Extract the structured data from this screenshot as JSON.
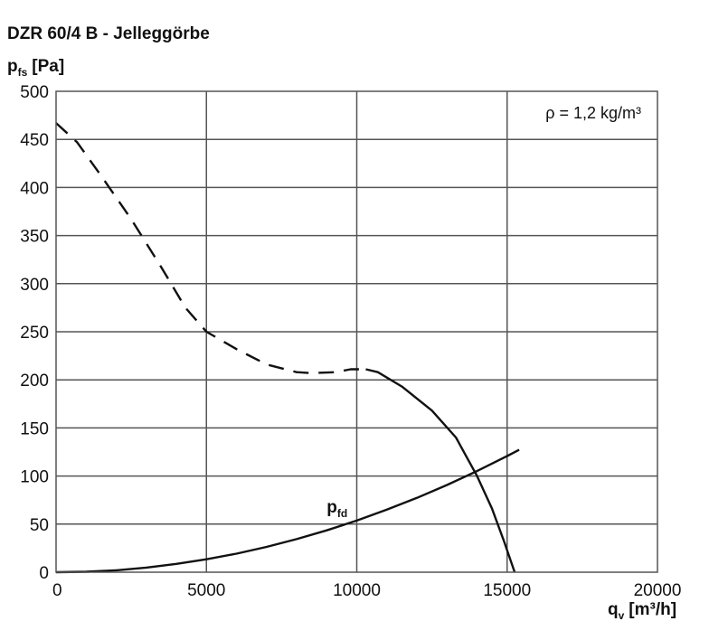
{
  "title": "DZR 60/4 B - Jelleggörbe",
  "chart_data": {
    "type": "line",
    "title": "DZR 60/4 B - Jelleggörbe",
    "xlabel": {
      "main": "q",
      "sub": "v",
      "unit": "[m³/h]"
    },
    "ylabel": {
      "main": "p",
      "sub": "fs",
      "unit": "[Pa]"
    },
    "xlim": [
      0,
      20000
    ],
    "ylim": [
      0,
      500
    ],
    "x_ticks": [
      0,
      5000,
      10000,
      15000,
      20000
    ],
    "y_ticks": [
      0,
      50,
      100,
      150,
      200,
      250,
      300,
      350,
      400,
      450,
      500
    ],
    "grid": true,
    "annotation": "ρ = 1,2 kg/m³",
    "series": [
      {
        "style": "dashed",
        "color": "#111111",
        "points": [
          [
            0,
            467
          ],
          [
            700,
            447
          ],
          [
            1500,
            412
          ],
          [
            2500,
            367
          ],
          [
            3500,
            317
          ],
          [
            4300,
            275
          ],
          [
            5000,
            250
          ],
          [
            6000,
            232
          ],
          [
            7000,
            216
          ],
          [
            8000,
            208
          ],
          [
            8500,
            207
          ],
          [
            9300,
            208
          ],
          [
            9800,
            211
          ],
          [
            10300,
            211
          ]
        ]
      },
      {
        "style": "solid",
        "color": "#111111",
        "points": [
          [
            10300,
            211
          ],
          [
            10700,
            208
          ],
          [
            11500,
            193
          ],
          [
            12500,
            168
          ],
          [
            13300,
            140
          ],
          [
            14000,
            100
          ],
          [
            14500,
            66
          ],
          [
            14900,
            32
          ],
          [
            15250,
            0
          ]
        ]
      },
      {
        "name_main": "p",
        "name_sub": "fd",
        "style": "solid",
        "color": "#111111",
        "points": [
          [
            0,
            0
          ],
          [
            1000,
            0.5
          ],
          [
            2000,
            2
          ],
          [
            3000,
            4.8
          ],
          [
            4000,
            8.6
          ],
          [
            5000,
            13.4
          ],
          [
            6000,
            19.3
          ],
          [
            7000,
            26.3
          ],
          [
            8000,
            34.4
          ],
          [
            9000,
            43.5
          ],
          [
            10000,
            53.7
          ],
          [
            11000,
            65
          ],
          [
            12000,
            77.3
          ],
          [
            13000,
            90.7
          ],
          [
            14000,
            105.2
          ],
          [
            15000,
            120.8
          ],
          [
            15400,
            127.3
          ]
        ]
      }
    ]
  }
}
